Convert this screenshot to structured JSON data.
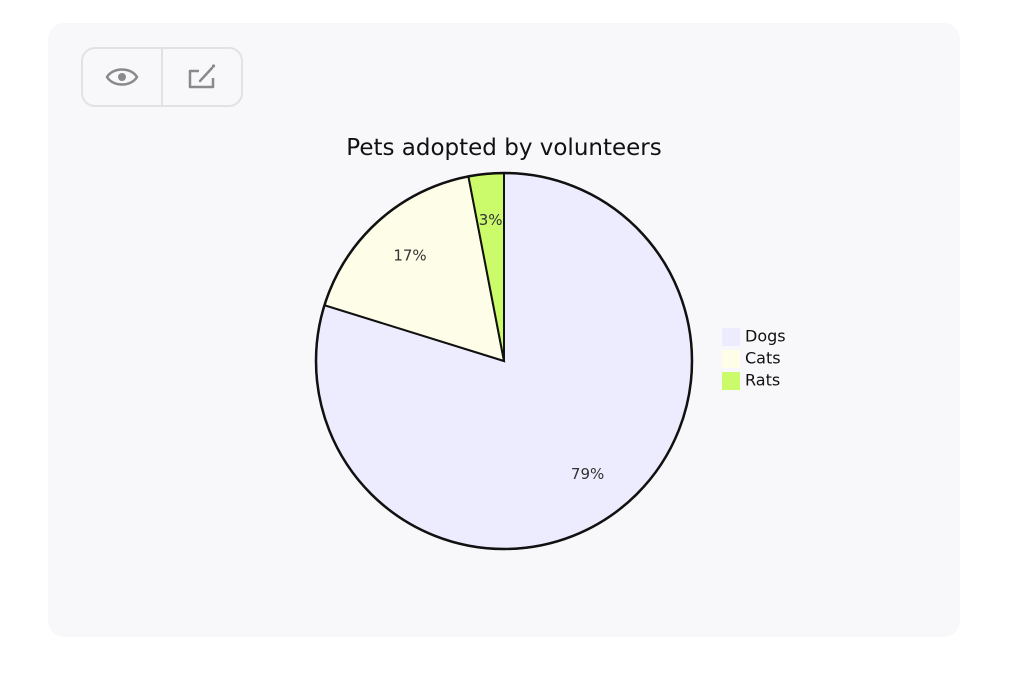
{
  "toolbar": {
    "view_icon": "eye-icon",
    "edit_icon": "edit-icon"
  },
  "chart_data": {
    "type": "pie",
    "title": "Pets adopted by volunteers",
    "legend_position": "right",
    "slices": [
      {
        "label": "Dogs",
        "value": 79,
        "display": "79%",
        "color": "#ececfe"
      },
      {
        "label": "Cats",
        "value": 17,
        "display": "17%",
        "color": "#fefee8"
      },
      {
        "label": "Rats",
        "value": 3,
        "display": "3%",
        "color": "#cbfa6a"
      }
    ]
  }
}
